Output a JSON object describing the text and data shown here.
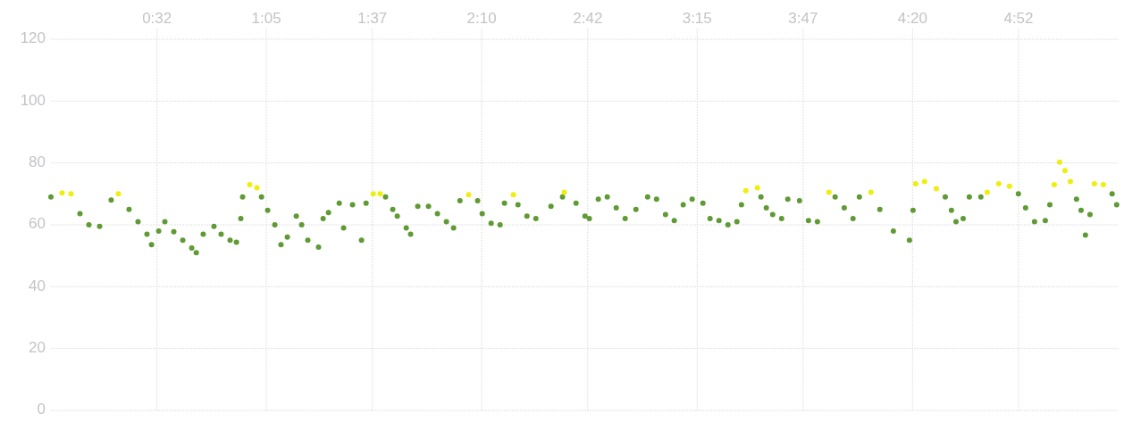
{
  "chart_data": {
    "type": "scatter",
    "marker": "circle",
    "grid": true,
    "xlim": [
      0,
      5.37
    ],
    "ylim": [
      0,
      120
    ],
    "xticks": [
      {
        "value": 0.5333,
        "label": "0:32"
      },
      {
        "value": 1.0833,
        "label": "1:05"
      },
      {
        "value": 1.6167,
        "label": "1:37"
      },
      {
        "value": 2.1667,
        "label": "2:10"
      },
      {
        "value": 2.7,
        "label": "2:42"
      },
      {
        "value": 3.25,
        "label": "3:15"
      },
      {
        "value": 3.7833,
        "label": "3:47"
      },
      {
        "value": 4.3333,
        "label": "4:20"
      },
      {
        "value": 4.8667,
        "label": "4:52"
      }
    ],
    "yticks": [
      0,
      20,
      40,
      60,
      80,
      100,
      120
    ],
    "series": [
      {
        "color": "#5f9a34",
        "x": [
          0,
          0.146,
          0.191,
          0.245,
          0.303,
          0.393,
          0.438,
          0.483,
          0.506,
          0.542,
          0.573,
          0.618,
          0.663,
          0.708,
          0.731,
          0.766,
          0.82,
          0.856,
          0.901,
          0.933,
          0.955,
          0.964,
          1.059,
          1.09,
          1.126,
          1.157,
          1.189,
          1.234,
          1.261,
          1.292,
          1.346,
          1.369,
          1.396,
          1.45,
          1.472,
          1.517,
          1.562,
          1.585,
          1.683,
          1.719,
          1.742,
          1.787,
          1.809,
          1.845,
          1.899,
          1.944,
          1.989,
          2.025,
          2.057,
          2.146,
          2.169,
          2.214,
          2.259,
          2.281,
          2.349,
          2.394,
          2.439,
          2.515,
          2.573,
          2.641,
          2.686,
          2.708,
          2.753,
          2.798,
          2.843,
          2.888,
          2.942,
          3.001,
          3.046,
          3.091,
          3.135,
          3.18,
          3.225,
          3.279,
          3.315,
          3.36,
          3.405,
          3.45,
          3.473,
          3.571,
          3.598,
          3.63,
          3.675,
          3.706,
          3.765,
          3.81,
          3.855,
          3.944,
          3.99,
          4.034,
          4.066,
          4.169,
          4.237,
          4.318,
          4.336,
          4.498,
          4.529,
          4.552,
          4.588,
          4.619,
          4.677,
          4.866,
          4.902,
          4.947,
          5.001,
          5.024,
          5.158,
          5.181,
          5.203,
          5.226,
          5.337,
          5.36
        ],
        "values": [
          69,
          63.6,
          60,
          59.5,
          68,
          65,
          61,
          57,
          53.6,
          58,
          61,
          57.8,
          55,
          52.5,
          51,
          57,
          59.5,
          57,
          55,
          54.4,
          62,
          69,
          69,
          64.7,
          60,
          53.6,
          56,
          62.8,
          60,
          55,
          52.8,
          62,
          64,
          67,
          59,
          66.5,
          55,
          67,
          69,
          65,
          62.8,
          59,
          57,
          66,
          66,
          63.6,
          61,
          59,
          67.8,
          67.8,
          63.6,
          60.5,
          60,
          67,
          66.5,
          62.8,
          62,
          66,
          69,
          67,
          62.8,
          62,
          68.3,
          69,
          65.5,
          62,
          65,
          69,
          68.3,
          63.3,
          61.4,
          66.5,
          68.3,
          67,
          62,
          61.4,
          60,
          61,
          66.5,
          69,
          65.5,
          63.3,
          62,
          68.3,
          67.8,
          61.4,
          61,
          69,
          65.5,
          62,
          69,
          65,
          58,
          55,
          64.7,
          69,
          64.7,
          61,
          62,
          69,
          69,
          70,
          65.5,
          61,
          61.4,
          66.5,
          68.3,
          64.7,
          56.7,
          63.3,
          70,
          66.5
        ]
      },
      {
        "color": "#eeee10",
        "x": [
          0.056,
          0.101,
          0.339,
          1.0,
          1.036,
          1.621,
          1.656,
          2.101,
          2.326,
          2.582,
          3.495,
          3.553,
          3.913,
          4.124,
          4.349,
          4.394,
          4.453,
          4.709,
          4.767,
          4.821,
          5.046,
          5.073,
          5.1,
          5.127,
          5.248,
          5.293
        ],
        "values": [
          70.3,
          70,
          70,
          73,
          72,
          70,
          70,
          69.7,
          69.7,
          70.5,
          71,
          72,
          70.5,
          70.5,
          73.3,
          74,
          71.7,
          70.5,
          73.3,
          72.5,
          73,
          80.3,
          77.5,
          74,
          73.3,
          73
        ]
      }
    ]
  }
}
